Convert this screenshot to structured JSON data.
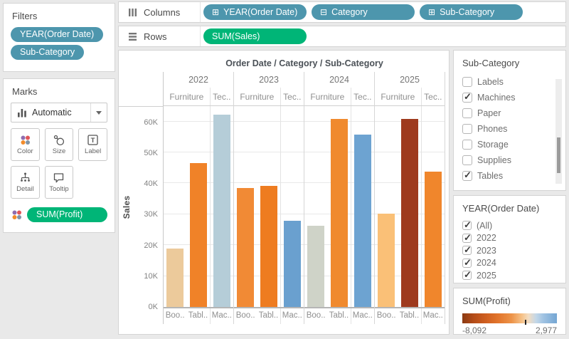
{
  "filters_card": {
    "title": "Filters",
    "pills": [
      {
        "label": "YEAR(Order Date)"
      },
      {
        "label": "Sub-Category"
      }
    ]
  },
  "marks_card": {
    "title": "Marks",
    "mark_type_dropdown": {
      "label": "Automatic",
      "icon": "bar-chart-icon"
    },
    "buttons": [
      {
        "label": "Color",
        "icon": "color-dots-icon"
      },
      {
        "label": "Size",
        "icon": "size-icon"
      },
      {
        "label": "Label",
        "icon": "text-label-icon"
      },
      {
        "label": "Detail",
        "icon": "detail-tree-icon"
      },
      {
        "label": "Tooltip",
        "icon": "tooltip-bubble-icon"
      }
    ],
    "encodings": [
      {
        "label": "SUM(Profit)",
        "icon": "color-dots-icon"
      }
    ]
  },
  "shelves": {
    "columns": {
      "label": "Columns",
      "pills": [
        {
          "label": "YEAR(Order Date)",
          "state_glyph": "⊞",
          "state_icon": "expand-plus-icon"
        },
        {
          "label": "Category",
          "state_glyph": "⊟",
          "state_icon": "collapse-minus-icon"
        },
        {
          "label": "Sub-Category",
          "state_glyph": "⊞",
          "state_icon": "expand-plus-icon"
        }
      ]
    },
    "rows": {
      "label": "Rows",
      "pills": [
        {
          "label": "SUM(Sales)"
        }
      ]
    }
  },
  "chart_data": {
    "type": "bar",
    "title": "Order Date / Category / Sub-Category",
    "ylabel": "Sales",
    "ylim": [
      0,
      65000
    ],
    "ytick_step": 10000,
    "yticks": [
      "0K",
      "10K",
      "20K",
      "30K",
      "40K",
      "50K",
      "60K"
    ],
    "color_by": "SUM(Profit)",
    "grid": true,
    "groups": [
      {
        "label": "2022",
        "panes": [
          {
            "label": "Furniture",
            "bars": [
              {
                "label": "Boo..",
                "value": 19000,
                "color": "#ecca9b"
              },
              {
                "label": "Tabl..",
                "value": 46500,
                "color": "#f08228"
              }
            ]
          },
          {
            "label": "Tec..",
            "bars": [
              {
                "label": "Mac..",
                "value": 62300,
                "color": "#b5cdd8"
              }
            ]
          }
        ]
      },
      {
        "label": "2023",
        "panes": [
          {
            "label": "Furniture",
            "bars": [
              {
                "label": "Boo..",
                "value": 38500,
                "color": "#f18a35"
              },
              {
                "label": "Tabl..",
                "value": 39300,
                "color": "#ee7c20"
              }
            ]
          },
          {
            "label": "Tec..",
            "bars": [
              {
                "label": "Mac..",
                "value": 27800,
                "color": "#6aa0cf"
              }
            ]
          }
        ]
      },
      {
        "label": "2024",
        "panes": [
          {
            "label": "Furniture",
            "bars": [
              {
                "label": "Boo..",
                "value": 26300,
                "color": "#cfd3c8"
              },
              {
                "label": "Tabl..",
                "value": 60800,
                "color": "#f08a2e"
              }
            ]
          },
          {
            "label": "Tec..",
            "bars": [
              {
                "label": "Mac..",
                "value": 55800,
                "color": "#6da3d1"
              }
            ]
          }
        ]
      },
      {
        "label": "2025",
        "panes": [
          {
            "label": "Furniture",
            "bars": [
              {
                "label": "Boo..",
                "value": 30300,
                "color": "#fac077"
              },
              {
                "label": "Tabl..",
                "value": 60900,
                "color": "#9e3a1e"
              }
            ]
          },
          {
            "label": "Tec..",
            "bars": [
              {
                "label": "Mac..",
                "value": 43800,
                "color": "#f0862c"
              }
            ]
          }
        ]
      }
    ]
  },
  "right_panel": {
    "subcategory_filter": {
      "title": "Sub-Category",
      "items": [
        {
          "label": "Labels",
          "checked": false
        },
        {
          "label": "Machines",
          "checked": true
        },
        {
          "label": "Paper",
          "checked": false
        },
        {
          "label": "Phones",
          "checked": false
        },
        {
          "label": "Storage",
          "checked": false
        },
        {
          "label": "Supplies",
          "checked": false
        },
        {
          "label": "Tables",
          "checked": true
        }
      ]
    },
    "year_filter": {
      "title": "YEAR(Order Date)",
      "items": [
        {
          "label": "(All)",
          "checked": true
        },
        {
          "label": "2022",
          "checked": true
        },
        {
          "label": "2023",
          "checked": true
        },
        {
          "label": "2024",
          "checked": true
        },
        {
          "label": "2025",
          "checked": true
        }
      ]
    },
    "profit_legend": {
      "title": "SUM(Profit)",
      "min_label": "-8,092",
      "max_label": "2,977",
      "gradient_stops": [
        "#8b3a13 0%",
        "#b44c18 12%",
        "#cf5f20 25%",
        "#e2752c 38%",
        "#ed9348 52%",
        "#f6c288 63%",
        "#f3ddc2 70%",
        "#c3d7e8 78%",
        "#9fc2e2 86%",
        "#74a6d3 100%"
      ],
      "tick_position_pct": 66
    }
  },
  "colors": {
    "dimension_pill": "#4d96ad",
    "measure_pill": "#00b577",
    "app_background": "#e9e9e9",
    "color_icon_dots": [
      "#8f6daf",
      "#e0575a",
      "#f28c2b",
      "#8095a8"
    ]
  }
}
